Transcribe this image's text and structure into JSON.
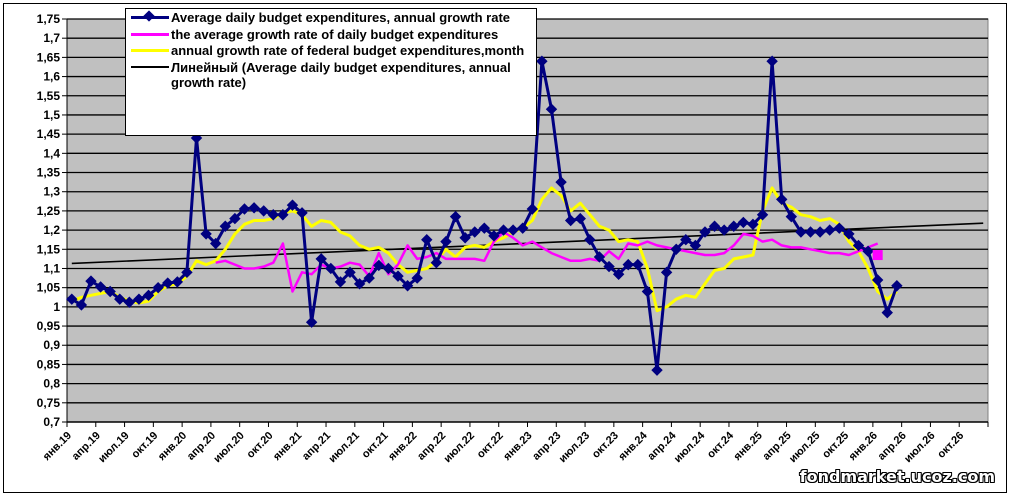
{
  "watermark": "fondmarket.ucoz.com",
  "chart_data": {
    "type": "line",
    "title": "",
    "xlabel": "",
    "ylabel": "",
    "ylim": [
      0.7,
      1.75
    ],
    "ytick_step": 0.05,
    "yticks": [
      "0,7",
      "0,75",
      "0,8",
      "0,85",
      "0,9",
      "0,95",
      "1",
      "1,05",
      "1,1",
      "1,15",
      "1,2",
      "1,25",
      "1,3",
      "1,35",
      "1,4",
      "1,45",
      "1,5",
      "1,55",
      "1,6",
      "1,65",
      "1,7",
      "1,75"
    ],
    "x_start": "2019-01",
    "x_months": 96,
    "xtick_labels": [
      "янв.19",
      "апр.19",
      "июл.19",
      "окт.19",
      "янв.20",
      "апр.20",
      "июл.20",
      "окт.20",
      "янв.21",
      "апр.21",
      "июл.21",
      "окт.21",
      "янв.22",
      "апр.22",
      "июл.22",
      "окт.22",
      "янв.23",
      "апр.23",
      "июл.23",
      "окт.23",
      "янв.24",
      "апр.24",
      "июл.24",
      "окт.24",
      "янв.25",
      "апр.25",
      "июл.25",
      "окт.25",
      "янв.26",
      "апр.26",
      "июл.26",
      "окт.26"
    ],
    "grid": true,
    "legend_position": "top-left",
    "series": [
      {
        "name": "Average daily budget expenditures,  annual growth rate",
        "color": "#000080",
        "marker": "diamond",
        "start_index": 0,
        "values": [
          1.02,
          1.005,
          1.067,
          1.052,
          1.04,
          1.02,
          1.012,
          1.02,
          1.03,
          1.05,
          1.062,
          1.065,
          1.09,
          1.44,
          1.19,
          1.165,
          1.21,
          1.23,
          1.255,
          1.258,
          1.25,
          1.24,
          1.24,
          1.265,
          1.245,
          0.96,
          1.125,
          1.1,
          1.065,
          1.09,
          1.06,
          1.075,
          1.108,
          1.1,
          1.08,
          1.055,
          1.075,
          1.175,
          1.115,
          1.17,
          1.235,
          1.18,
          1.195,
          1.205,
          1.185,
          1.2,
          1.2,
          1.205,
          1.255,
          1.64,
          1.515,
          1.325,
          1.225,
          1.23,
          1.175,
          1.13,
          1.105,
          1.085,
          1.11,
          1.11,
          1.04,
          0.835,
          1.09,
          1.15,
          1.175,
          1.16,
          1.195,
          1.21,
          1.2,
          1.21,
          1.22,
          1.215,
          1.24,
          1.64,
          1.28,
          1.235,
          1.195,
          1.195,
          1.195,
          1.2,
          1.205,
          1.19,
          1.16,
          1.145,
          1.07,
          0.985,
          1.055
        ]
      },
      {
        "name": "the average growth rate of daily budget expenditures",
        "color": "#FF00FF",
        "marker": "none",
        "start_index": 15,
        "values": [
          1.115,
          1.12,
          1.11,
          1.1,
          1.1,
          1.105,
          1.115,
          1.165,
          1.04,
          1.09,
          1.085,
          1.11,
          1.1,
          1.105,
          1.115,
          1.11,
          1.08,
          1.14,
          1.085,
          1.11,
          1.16,
          1.125,
          1.13,
          1.14,
          1.125,
          1.125,
          1.125,
          1.125,
          1.12,
          1.17,
          1.195,
          1.18,
          1.16,
          1.17,
          1.155,
          1.14,
          1.13,
          1.12,
          1.12,
          1.125,
          1.12,
          1.145,
          1.125,
          1.165,
          1.16,
          1.17,
          1.16,
          1.155,
          1.15,
          1.145,
          1.14,
          1.135,
          1.135,
          1.14,
          1.16,
          1.19,
          1.185,
          1.17,
          1.175,
          1.16,
          1.155,
          1.155,
          1.15,
          1.145,
          1.14,
          1.14,
          1.135,
          1.145,
          1.155,
          1.165
        ]
      },
      {
        "name": "annual growth rate of federal budget expenditures,month",
        "color": "#FFFF00",
        "marker": "none",
        "start_index": 0,
        "values": [
          1.015,
          1.025,
          1.03,
          1.035,
          1.04,
          1.025,
          1.015,
          1.01,
          1.015,
          1.04,
          1.055,
          1.06,
          1.08,
          1.12,
          1.11,
          1.12,
          1.15,
          1.19,
          1.215,
          1.225,
          1.225,
          1.23,
          1.245,
          1.25,
          1.24,
          1.21,
          1.225,
          1.22,
          1.195,
          1.185,
          1.16,
          1.15,
          1.155,
          1.14,
          1.11,
          1.09,
          1.095,
          1.1,
          1.12,
          1.15,
          1.13,
          1.155,
          1.16,
          1.155,
          1.17,
          1.18,
          1.195,
          1.205,
          1.225,
          1.28,
          1.31,
          1.29,
          1.25,
          1.27,
          1.24,
          1.21,
          1.2,
          1.17,
          1.175,
          1.17,
          1.1,
          0.99,
          1.0,
          1.02,
          1.03,
          1.025,
          1.06,
          1.095,
          1.1,
          1.125,
          1.13,
          1.135,
          1.25,
          1.31,
          1.27,
          1.26,
          1.24,
          1.235,
          1.225,
          1.23,
          1.215,
          1.17,
          1.145,
          1.1,
          1.04,
          1.02,
          1.04
        ]
      },
      {
        "name": "Линейный (Average daily budget expenditures, annual growth rate)",
        "color": "#000000",
        "marker": "none",
        "type": "trendline",
        "x_range_index": [
          0,
          95
        ],
        "y_range": [
          1.113,
          1.218
        ]
      }
    ]
  },
  "legend": {
    "items": [
      {
        "label": "Average daily budget expenditures,  annual growth rate",
        "color": "#000080"
      },
      {
        "label": "the average growth rate of daily budget expenditures",
        "color": "#FF00FF"
      },
      {
        "label": "annual growth rate of federal budget expenditures,month",
        "color": "#FFFF00"
      },
      {
        "label": "Линейный (Average daily budget expenditures, annual growth rate)",
        "color": "#000000"
      }
    ]
  }
}
